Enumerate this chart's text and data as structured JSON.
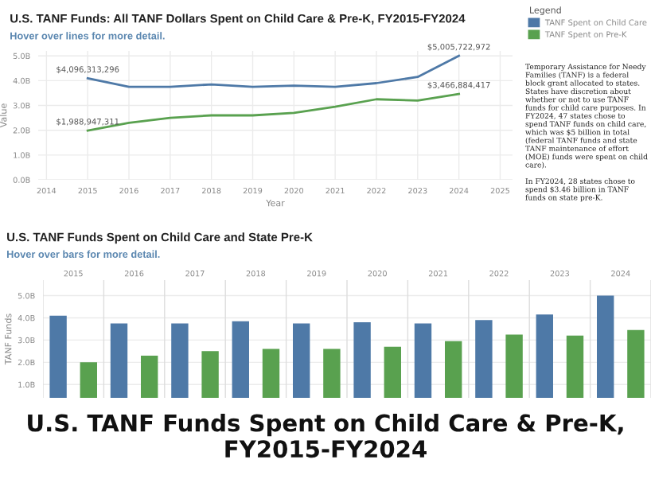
{
  "chart_data": [
    {
      "type": "line",
      "title": "U.S. TANF Funds: All TANF Dollars Spent on Child Care & Pre-K, FY2015-FY2024",
      "subtitle": "Hover over lines for more detail.",
      "xlabel": "Year",
      "ylabel": "Value",
      "legend_title": "Legend",
      "legend": "right",
      "x": [
        2015,
        2016,
        2017,
        2018,
        2019,
        2020,
        2021,
        2022,
        2023,
        2024
      ],
      "series": [
        {
          "name": "TANF Spent on Child Care",
          "color": "#4e79a7",
          "values": [
            4096313296,
            3750000000,
            3750000000,
            3850000000,
            3750000000,
            3800000000,
            3750000000,
            3900000000,
            4150000000,
            5005722972
          ],
          "value_labels": [
            "$4,096,313,296",
            null,
            null,
            null,
            null,
            null,
            null,
            null,
            null,
            "$5,005,722,972"
          ]
        },
        {
          "name": "TANF Spent on Pre-K",
          "color": "#59a14f",
          "values": [
            1988947311,
            2300000000,
            2500000000,
            2600000000,
            2600000000,
            2700000000,
            2950000000,
            3250000000,
            3200000000,
            3466884417
          ],
          "value_labels": [
            "$1,988,947,311",
            null,
            null,
            null,
            null,
            null,
            null,
            null,
            null,
            "$3,466,884,417"
          ]
        }
      ],
      "xlim": [
        2013.8,
        2025.3
      ],
      "xticks": [
        2014,
        2015,
        2016,
        2017,
        2018,
        2019,
        2020,
        2021,
        2022,
        2023,
        2024,
        2025
      ],
      "ylim": [
        0,
        5200000000
      ],
      "yticks": [
        {
          "value": 0,
          "label": "0.0B"
        },
        {
          "value": 1000000000,
          "label": "1.0B"
        },
        {
          "value": 2000000000,
          "label": "2.0B"
        },
        {
          "value": 3000000000,
          "label": "3.0B"
        },
        {
          "value": 4000000000,
          "label": "4.0B"
        },
        {
          "value": 5000000000,
          "label": "5.0B"
        }
      ],
      "grid": true,
      "marker": "none",
      "line_style": "solid"
    },
    {
      "type": "other",
      "annotations": [
        "Temporary Assistance for Needy Families (TANF) is a federal block grant allocated to states. States have discretion about whether or not to use TANF funds for child care purposes. In FY2024, 47 states chose to spend TANF funds on child care, which was $5 billion in total (federal TANF funds and state TANF maintenance of effort (MOE) funds were spent on child care).",
        "In FY2024, 28 states chose to spend $3.46 billion in TANF funds on state pre-K."
      ]
    },
    {
      "type": "bar",
      "title": "U.S. TANF Funds Spent on Child Care and State Pre-K",
      "subtitle": "Hover over bars for more detail.",
      "ylabel": "TANF Funds",
      "categories": [
        "2015",
        "2016",
        "2017",
        "2018",
        "2019",
        "2020",
        "2021",
        "2022",
        "2023",
        "2024"
      ],
      "series": [
        {
          "color": "#4e79a7",
          "values": [
            4100000000,
            3750000000,
            3750000000,
            3850000000,
            3750000000,
            3800000000,
            3750000000,
            3900000000,
            4150000000,
            5000000000
          ]
        },
        {
          "color": "#59a14f",
          "values": [
            2000000000,
            2300000000,
            2500000000,
            2600000000,
            2600000000,
            2700000000,
            2950000000,
            3250000000,
            3200000000,
            3450000000
          ]
        }
      ],
      "ylim": [
        400000000,
        5700000000
      ],
      "yticks": [
        {
          "value": 1000000000,
          "label": "1.0B"
        },
        {
          "value": 2000000000,
          "label": "2.0B"
        },
        {
          "value": 3000000000,
          "label": "3.0B"
        },
        {
          "value": 4000000000,
          "label": "4.0B"
        },
        {
          "value": 5000000000,
          "label": "5.0B"
        }
      ],
      "grid": "y",
      "annotations": [
        "U.S. TANF Funds Spent on Child Care & Pre-K, FY2015-FY2024"
      ]
    }
  ]
}
